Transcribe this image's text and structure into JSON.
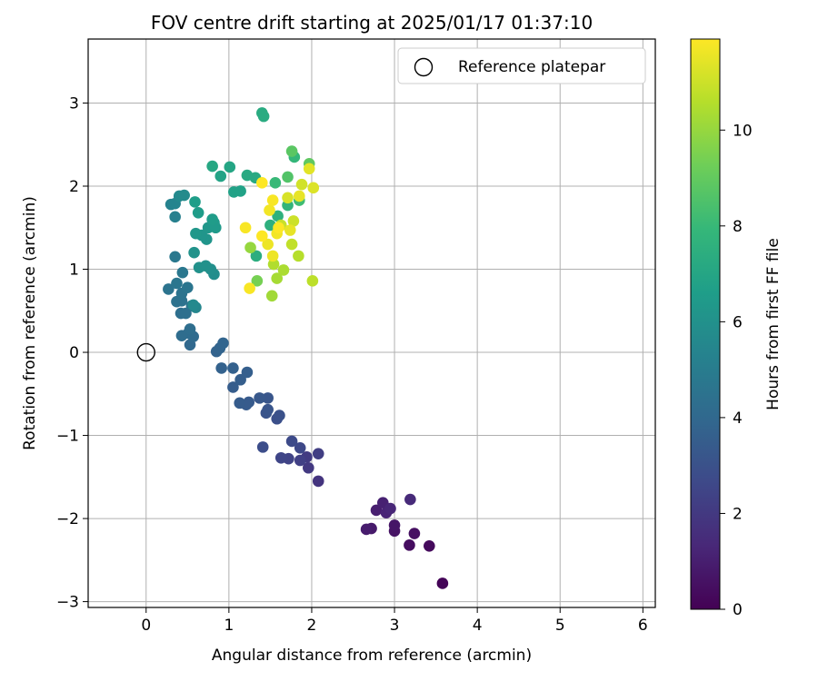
{
  "chart_data": {
    "type": "scatter",
    "title": "FOV centre drift starting at 2025/01/17 01:37:10",
    "xlabel": "Angular distance from reference (arcmin)",
    "ylabel": "Rotation from reference (arcmin)",
    "xlim": [
      -0.7,
      6.15
    ],
    "ylim": [
      -3.07,
      3.77
    ],
    "x_ticks": [
      0,
      1,
      2,
      3,
      4,
      5,
      6
    ],
    "y_ticks": [
      -3,
      -2,
      -1,
      0,
      1,
      2,
      3
    ],
    "grid": true,
    "legend": {
      "placement": "top-right",
      "entries": [
        "Reference platepar"
      ]
    },
    "reference_point": {
      "x": 0,
      "y": 0,
      "label": "Reference platepar"
    },
    "colorbar": {
      "label": "Hours from first FF file",
      "range": [
        0,
        11.9
      ],
      "ticks": [
        0,
        2,
        4,
        6,
        8,
        10
      ],
      "colormap": [
        "#440154",
        "#482878",
        "#3e4989",
        "#31688e",
        "#26828e",
        "#1f9e89",
        "#35b779",
        "#6ece58",
        "#b5de2b",
        "#fde725"
      ]
    },
    "points": [
      {
        "x": 3.58,
        "y": -2.78,
        "t": 0.1
      },
      {
        "x": 3.42,
        "y": -2.33,
        "t": 0.3
      },
      {
        "x": 3.18,
        "y": -2.32,
        "t": 0.4
      },
      {
        "x": 3.24,
        "y": -2.18,
        "t": 0.5
      },
      {
        "x": 3.0,
        "y": -2.15,
        "t": 0.6
      },
      {
        "x": 3.0,
        "y": -2.08,
        "t": 0.7
      },
      {
        "x": 2.72,
        "y": -2.12,
        "t": 0.8
      },
      {
        "x": 2.66,
        "y": -2.13,
        "t": 0.9
      },
      {
        "x": 2.78,
        "y": -1.9,
        "t": 1.0
      },
      {
        "x": 2.86,
        "y": -1.81,
        "t": 1.1
      },
      {
        "x": 2.9,
        "y": -1.93,
        "t": 1.2
      },
      {
        "x": 2.95,
        "y": -1.88,
        "t": 1.3
      },
      {
        "x": 3.19,
        "y": -1.77,
        "t": 1.4
      },
      {
        "x": 2.08,
        "y": -1.55,
        "t": 1.8
      },
      {
        "x": 1.96,
        "y": -1.39,
        "t": 2.0
      },
      {
        "x": 1.94,
        "y": -1.26,
        "t": 2.1
      },
      {
        "x": 2.08,
        "y": -1.22,
        "t": 2.2
      },
      {
        "x": 1.86,
        "y": -1.3,
        "t": 2.3
      },
      {
        "x": 1.72,
        "y": -1.28,
        "t": 2.4
      },
      {
        "x": 1.63,
        "y": -1.27,
        "t": 2.5
      },
      {
        "x": 1.86,
        "y": -1.15,
        "t": 2.6
      },
      {
        "x": 1.76,
        "y": -1.07,
        "t": 2.7
      },
      {
        "x": 1.41,
        "y": -1.14,
        "t": 2.8
      },
      {
        "x": 1.58,
        "y": -0.8,
        "t": 2.9
      },
      {
        "x": 1.61,
        "y": -0.76,
        "t": 3.0
      },
      {
        "x": 1.45,
        "y": -0.73,
        "t": 3.1
      },
      {
        "x": 1.47,
        "y": -0.69,
        "t": 3.15
      },
      {
        "x": 1.47,
        "y": -0.55,
        "t": 3.2
      },
      {
        "x": 1.37,
        "y": -0.55,
        "t": 3.3
      },
      {
        "x": 1.24,
        "y": -0.6,
        "t": 3.35
      },
      {
        "x": 1.21,
        "y": -0.63,
        "t": 3.4
      },
      {
        "x": 1.13,
        "y": -0.61,
        "t": 3.45
      },
      {
        "x": 1.05,
        "y": -0.42,
        "t": 3.5
      },
      {
        "x": 1.14,
        "y": -0.33,
        "t": 3.55
      },
      {
        "x": 1.22,
        "y": -0.24,
        "t": 3.6
      },
      {
        "x": 1.05,
        "y": -0.19,
        "t": 3.65
      },
      {
        "x": 0.91,
        "y": -0.19,
        "t": 3.7
      },
      {
        "x": 0.85,
        "y": 0.01,
        "t": 3.75
      },
      {
        "x": 0.89,
        "y": 0.05,
        "t": 3.8
      },
      {
        "x": 0.93,
        "y": 0.11,
        "t": 3.85
      },
      {
        "x": 0.53,
        "y": 0.09,
        "t": 4.0
      },
      {
        "x": 0.57,
        "y": 0.19,
        "t": 4.1
      },
      {
        "x": 0.51,
        "y": 0.23,
        "t": 4.15
      },
      {
        "x": 0.43,
        "y": 0.2,
        "t": 4.2
      },
      {
        "x": 0.53,
        "y": 0.28,
        "t": 4.25
      },
      {
        "x": 0.42,
        "y": 0.47,
        "t": 4.3
      },
      {
        "x": 0.48,
        "y": 0.47,
        "t": 4.35
      },
      {
        "x": 0.55,
        "y": 0.56,
        "t": 4.4
      },
      {
        "x": 0.37,
        "y": 0.61,
        "t": 4.45
      },
      {
        "x": 0.43,
        "y": 0.62,
        "t": 4.5
      },
      {
        "x": 0.43,
        "y": 0.71,
        "t": 4.55
      },
      {
        "x": 0.27,
        "y": 0.76,
        "t": 4.6
      },
      {
        "x": 0.5,
        "y": 0.78,
        "t": 4.65
      },
      {
        "x": 0.37,
        "y": 0.83,
        "t": 4.7
      },
      {
        "x": 0.44,
        "y": 0.96,
        "t": 4.75
      },
      {
        "x": 0.35,
        "y": 1.15,
        "t": 4.8
      },
      {
        "x": 0.6,
        "y": 0.54,
        "t": 5.5
      },
      {
        "x": 0.57,
        "y": 0.57,
        "t": 5.6
      },
      {
        "x": 0.82,
        "y": 0.94,
        "t": 5.8
      },
      {
        "x": 0.78,
        "y": 1.0,
        "t": 5.9
      },
      {
        "x": 0.64,
        "y": 1.02,
        "t": 6.0
      },
      {
        "x": 0.72,
        "y": 1.04,
        "t": 6.0
      },
      {
        "x": 0.58,
        "y": 1.2,
        "t": 6.1
      },
      {
        "x": 0.73,
        "y": 1.36,
        "t": 6.2
      },
      {
        "x": 0.67,
        "y": 1.41,
        "t": 6.2
      },
      {
        "x": 0.6,
        "y": 1.43,
        "t": 6.3
      },
      {
        "x": 0.75,
        "y": 1.5,
        "t": 6.3
      },
      {
        "x": 0.84,
        "y": 1.5,
        "t": 6.4
      },
      {
        "x": 0.82,
        "y": 1.56,
        "t": 6.4
      },
      {
        "x": 0.8,
        "y": 1.6,
        "t": 6.5
      },
      {
        "x": 0.35,
        "y": 1.63,
        "t": 5.2
      },
      {
        "x": 0.63,
        "y": 1.68,
        "t": 6.5
      },
      {
        "x": 0.3,
        "y": 1.78,
        "t": 5.3
      },
      {
        "x": 0.35,
        "y": 1.79,
        "t": 5.4
      },
      {
        "x": 0.59,
        "y": 1.81,
        "t": 6.6
      },
      {
        "x": 0.4,
        "y": 1.88,
        "t": 5.6
      },
      {
        "x": 0.46,
        "y": 1.89,
        "t": 5.7
      },
      {
        "x": 1.06,
        "y": 1.93,
        "t": 6.8
      },
      {
        "x": 1.14,
        "y": 1.94,
        "t": 6.8
      },
      {
        "x": 0.9,
        "y": 2.12,
        "t": 6.9
      },
      {
        "x": 1.01,
        "y": 2.23,
        "t": 7.0
      },
      {
        "x": 0.8,
        "y": 2.24,
        "t": 7.1
      },
      {
        "x": 1.22,
        "y": 2.13,
        "t": 7.2
      },
      {
        "x": 1.32,
        "y": 2.1,
        "t": 7.2
      },
      {
        "x": 1.4,
        "y": 2.88,
        "t": 7.3
      },
      {
        "x": 1.42,
        "y": 2.84,
        "t": 7.3
      },
      {
        "x": 1.33,
        "y": 1.16,
        "t": 7.4
      },
      {
        "x": 1.5,
        "y": 1.53,
        "t": 7.5
      },
      {
        "x": 1.59,
        "y": 1.64,
        "t": 7.6
      },
      {
        "x": 1.71,
        "y": 1.77,
        "t": 7.8
      },
      {
        "x": 1.79,
        "y": 2.35,
        "t": 7.9
      },
      {
        "x": 1.56,
        "y": 2.04,
        "t": 8.0
      },
      {
        "x": 1.85,
        "y": 1.83,
        "t": 8.2
      },
      {
        "x": 1.71,
        "y": 2.11,
        "t": 8.6
      },
      {
        "x": 1.76,
        "y": 2.42,
        "t": 8.8
      },
      {
        "x": 1.97,
        "y": 2.27,
        "t": 8.9
      },
      {
        "x": 1.34,
        "y": 0.86,
        "t": 9.4
      },
      {
        "x": 1.26,
        "y": 1.26,
        "t": 10.0
      },
      {
        "x": 1.52,
        "y": 0.68,
        "t": 10.2
      },
      {
        "x": 1.58,
        "y": 0.89,
        "t": 10.3
      },
      {
        "x": 1.66,
        "y": 0.99,
        "t": 10.4
      },
      {
        "x": 1.54,
        "y": 1.06,
        "t": 10.5
      },
      {
        "x": 1.84,
        "y": 1.16,
        "t": 10.6
      },
      {
        "x": 2.01,
        "y": 0.86,
        "t": 10.7
      },
      {
        "x": 1.76,
        "y": 1.3,
        "t": 10.8
      },
      {
        "x": 1.63,
        "y": 1.53,
        "t": 10.9
      },
      {
        "x": 1.78,
        "y": 1.58,
        "t": 11.0
      },
      {
        "x": 1.88,
        "y": 2.02,
        "t": 11.1
      },
      {
        "x": 1.71,
        "y": 1.86,
        "t": 11.2
      },
      {
        "x": 2.02,
        "y": 1.98,
        "t": 11.3
      },
      {
        "x": 1.97,
        "y": 2.21,
        "t": 11.4
      },
      {
        "x": 1.85,
        "y": 1.88,
        "t": 11.5
      },
      {
        "x": 1.74,
        "y": 1.47,
        "t": 11.5
      },
      {
        "x": 1.47,
        "y": 1.3,
        "t": 11.6
      },
      {
        "x": 1.53,
        "y": 1.16,
        "t": 11.6
      },
      {
        "x": 1.58,
        "y": 1.43,
        "t": 11.7
      },
      {
        "x": 1.49,
        "y": 1.71,
        "t": 11.7
      },
      {
        "x": 1.53,
        "y": 1.83,
        "t": 11.8
      },
      {
        "x": 1.2,
        "y": 1.5,
        "t": 11.8
      },
      {
        "x": 1.25,
        "y": 0.77,
        "t": 11.8
      },
      {
        "x": 1.4,
        "y": 2.04,
        "t": 11.9
      },
      {
        "x": 1.6,
        "y": 1.5,
        "t": 11.9
      },
      {
        "x": 1.4,
        "y": 1.4,
        "t": 11.9
      }
    ]
  }
}
